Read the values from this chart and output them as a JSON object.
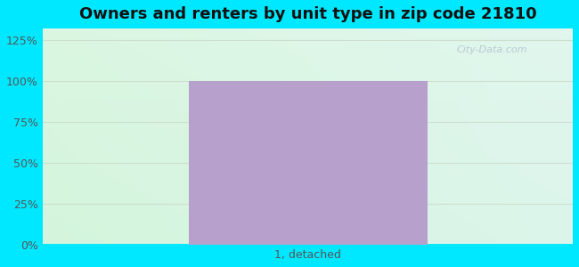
{
  "title": "Owners and renters by unit type in zip code 21810",
  "categories": [
    "1, detached"
  ],
  "values": [
    100
  ],
  "bar_color": "#b8a0cc",
  "bar_width": 0.45,
  "yticks": [
    0,
    25,
    50,
    75,
    100,
    125
  ],
  "ytick_labels": [
    "0%",
    "25%",
    "50%",
    "75%",
    "100%",
    "125%"
  ],
  "ylim": [
    0,
    132
  ],
  "title_fontsize": 13,
  "tick_fontsize": 9,
  "xlabel_fontsize": 9,
  "watermark": "City-Data.com",
  "tick_color": "#555555",
  "gridline_color": "#ccddcc",
  "title_color": "#111111"
}
